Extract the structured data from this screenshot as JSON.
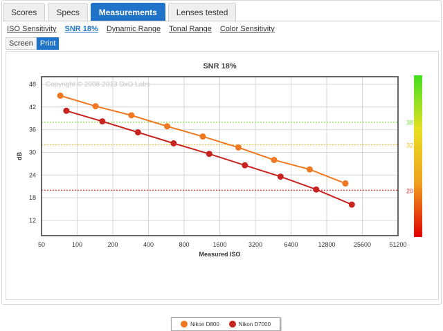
{
  "tabs": [
    {
      "label": "Scores"
    },
    {
      "label": "Specs"
    },
    {
      "label": "Measurements"
    },
    {
      "label": "Lenses tested"
    }
  ],
  "subnav": [
    {
      "label": "ISO Sensitivity"
    },
    {
      "label": "SNR 18%"
    },
    {
      "label": "Dynamic Range"
    },
    {
      "label": "Tonal Range"
    },
    {
      "label": "Color Sensitivity"
    }
  ],
  "toggle": {
    "screen": "Screen",
    "print": "Print"
  },
  "chart_data": {
    "type": "line",
    "title": "SNR 18%",
    "xlabel": "Measured ISO",
    "ylabel": "dB",
    "watermark": "Copyright © 2008-2013 DxO Labs",
    "x_scale": "log2",
    "xlim": [
      50,
      51200
    ],
    "ylim": [
      8,
      50
    ],
    "x_ticks": [
      50,
      100,
      200,
      400,
      800,
      1600,
      3200,
      6400,
      12800,
      25600,
      51200
    ],
    "y_ticks": [
      12,
      18,
      24,
      30,
      36,
      42,
      48
    ],
    "grid": true,
    "legend_position": "bottom-center",
    "reference_lines": [
      {
        "value": 38,
        "label": "38",
        "color": "#7ddc3c"
      },
      {
        "value": 32,
        "label": "32",
        "color": "#f0c020"
      },
      {
        "value": 20,
        "label": "20",
        "color": "#e03030"
      }
    ],
    "color_bar": {
      "colors": [
        "#e00000",
        "#f0a020",
        "#e8e020",
        "#40e020"
      ]
    },
    "series": [
      {
        "name": "Nikon D800",
        "color": "#f07820",
        "x": [
          72,
          143,
          287,
          575,
          1150,
          2300,
          4600,
          9200,
          18400
        ],
        "y": [
          45.0,
          42.2,
          39.8,
          36.9,
          34.2,
          31.3,
          28.0,
          25.5,
          21.8
        ]
      },
      {
        "name": "Nikon D7000",
        "color": "#c8231e",
        "x": [
          81,
          163,
          326,
          652,
          1304,
          2608,
          5216,
          10432,
          20864
        ],
        "y": [
          41.0,
          38.2,
          35.3,
          32.4,
          29.6,
          26.6,
          23.6,
          20.2,
          16.2
        ]
      }
    ]
  }
}
